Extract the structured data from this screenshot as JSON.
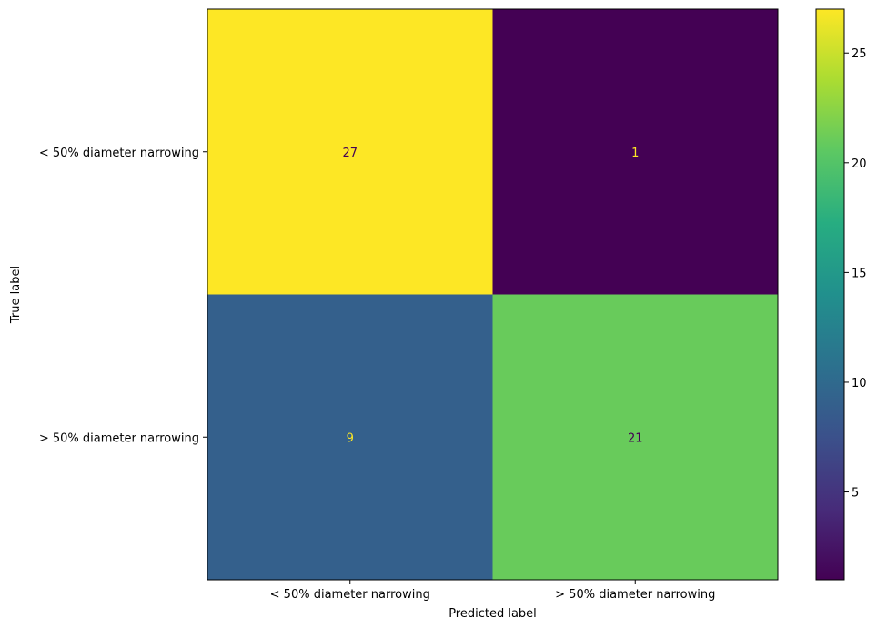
{
  "chart_data": {
    "type": "heatmap",
    "title": "",
    "xlabel": "Predicted label",
    "ylabel": "True label",
    "x_categories": [
      "< 50% diameter narrowing",
      "> 50% diameter narrowing"
    ],
    "y_categories": [
      "< 50% diameter narrowing",
      "> 50% diameter narrowing"
    ],
    "values": [
      [
        27,
        1
      ],
      [
        9,
        21
      ]
    ],
    "colormap": "viridis",
    "color_range": [
      1,
      27
    ],
    "colorbar_ticks": [
      5,
      10,
      15,
      20,
      25
    ],
    "grid": false
  }
}
